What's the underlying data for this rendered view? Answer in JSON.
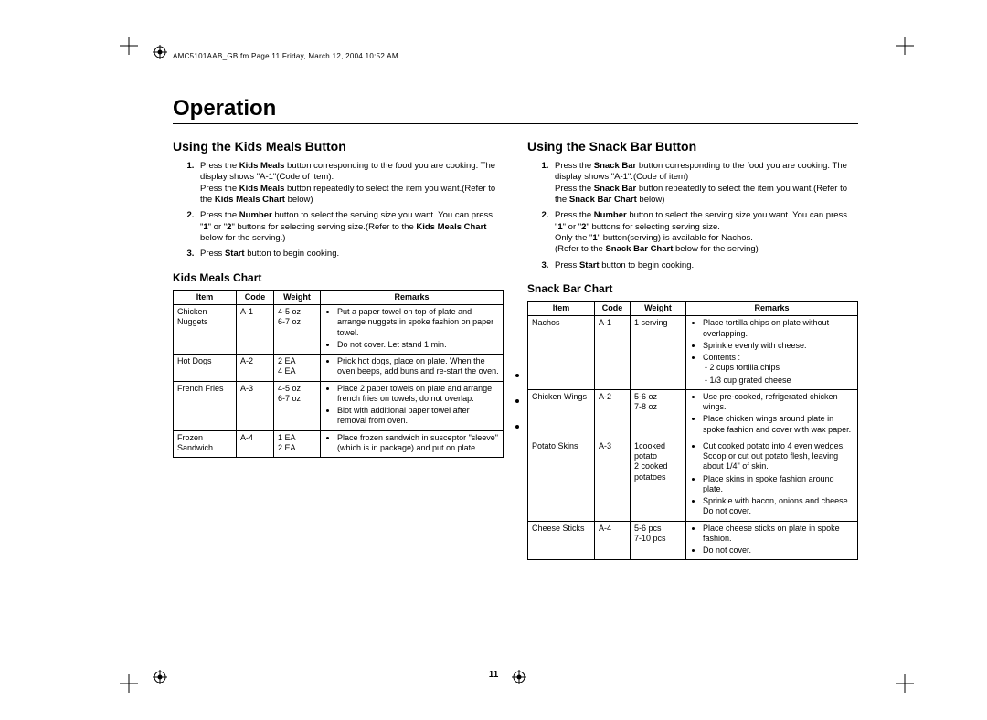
{
  "header_line": "AMC5101AAB_GB.fm  Page 11  Friday, March 12, 2004  10:52 AM",
  "page_title": "Operation",
  "page_number": "11",
  "left": {
    "heading": "Using the Kids Meals Button",
    "steps": [
      "Press the <b>Kids Meals</b> button corresponding to the food you are cooking. The display shows \"A-1\"(Code of item).<br>Press the <b>Kids Meals</b> button repeatedly to select the item you want.(Refer to the <b>Kids Meals Chart</b> below)",
      "Press the <b>Number</b> button to select the serving size you want. You can press \"<b>1</b>\" or \"<b>2</b>\" buttons for selecting serving size.(Refer to the <b>Kids Meals Chart</b> below for the serving.)",
      "Press <b>Start</b> button to begin cooking."
    ],
    "chart_title": "Kids Meals Chart",
    "columns": [
      "Item",
      "Code",
      "Weight",
      "Remarks"
    ],
    "rows": [
      {
        "item": "Chicken Nuggets",
        "code": "A-1",
        "weight": "4-5 oz<br>6-7 oz",
        "remarks": [
          "Put a paper towel on top of plate and arrange nuggets in spoke fashion on paper towel.",
          "Do not cover. Let stand 1 min."
        ]
      },
      {
        "item": "Hot Dogs",
        "code": "A-2",
        "weight": "2 EA<br>4 EA",
        "remarks": [
          "Prick hot dogs, place on plate. When the oven beeps, add buns and re-start the oven."
        ]
      },
      {
        "item": "French Fries",
        "code": "A-3",
        "weight": "4-5 oz<br>6-7 oz",
        "remarks": [
          "Place 2 paper towels on plate and arrange french fries on towels, do not overlap.",
          "Blot with additional paper towel after removal from oven."
        ]
      },
      {
        "item": "Frozen Sandwich",
        "code": "A-4",
        "weight": "1 EA<br>2 EA",
        "remarks": [
          "Place frozen sandwich in susceptor \"sleeve\" (which is in package) and put on plate."
        ]
      }
    ]
  },
  "right": {
    "heading": "Using the Snack Bar Button",
    "steps": [
      "Press the <b>Snack Bar</b> button corresponding to the food you are cooking. The display shows \"A-1\".(Code of item)<br>Press the <b>Snack Bar</b> button repeatedly to select the item you want.(Refer to the <b>Snack Bar Chart</b> below)",
      "Press the <b>Number</b> button to select the serving size you want. You can press \"<b>1</b>\" or \"<b>2</b>\" buttons for selecting serving size.<br>Only the \"<b>1</b>\" button(serving) is available for Nachos.<br>(Refer to the <b>Snack Bar Chart</b> below for the serving)",
      "Press <b>Start</b> button to begin cooking."
    ],
    "chart_title": "Snack Bar Chart",
    "columns": [
      "Item",
      "Code",
      "Weight",
      "Remarks"
    ],
    "rows": [
      {
        "item": "Nachos",
        "code": "A-1",
        "weight": "1 serving",
        "remarks": [
          "Place tortilla chips on plate without overlapping.",
          "Sprinkle evenly with cheese.",
          "Contents :<ul><li>2 cups tortilla chips</li><li>1/3 cup grated cheese</li></ul>"
        ]
      },
      {
        "item": "Chicken Wings",
        "code": "A-2",
        "weight": "5-6 oz<br>7-8 oz",
        "remarks": [
          "Use pre-cooked, refrigerated chicken wings.",
          "Place chicken wings around plate in spoke fashion and cover with wax paper."
        ]
      },
      {
        "item": "Potato Skins",
        "code": "A-3",
        "weight": "1cooked potato<br>2 cooked potatoes",
        "remarks": [
          "Cut cooked potato into 4 even wedges. Scoop or cut out potato flesh, leaving about 1/4\" of skin.",
          "Place skins in spoke fashion around plate.",
          "Sprinkle with bacon, onions and cheese. Do not cover."
        ]
      },
      {
        "item": "Cheese Sticks",
        "code": "A-4",
        "weight": "5-6 pcs<br>7-10 pcs",
        "remarks": [
          "Place cheese sticks on plate in spoke fashion.",
          "Do not cover."
        ]
      }
    ]
  }
}
